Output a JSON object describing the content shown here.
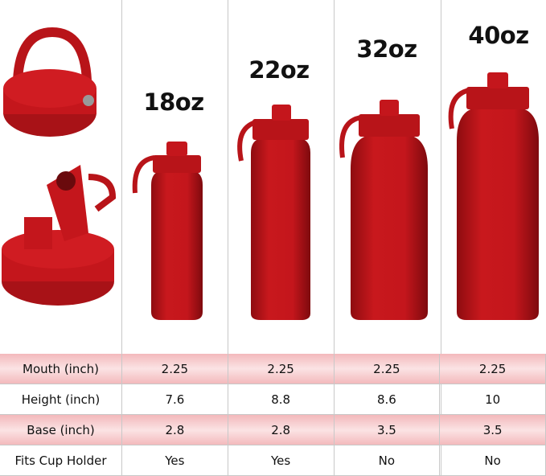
{
  "sizes": [
    "18oz",
    "22oz",
    "32oz",
    "40oz"
  ],
  "table": {
    "rows": [
      {
        "label": "Mouth (inch)",
        "values": [
          "2.25",
          "2.25",
          "2.25",
          "2.25"
        ]
      },
      {
        "label": "Height (inch)",
        "values": [
          "7.6",
          "8.8",
          "8.6",
          "10"
        ]
      },
      {
        "label": "Base (inch)",
        "values": [
          "2.8",
          "2.8",
          "3.5",
          "3.5"
        ]
      },
      {
        "label": "Fits Cup Holder",
        "values": [
          "Yes",
          "Yes",
          "No",
          "No"
        ]
      }
    ]
  },
  "colors": {
    "bottle": "#c4161c",
    "row_highlight": "#f3b9bc"
  }
}
